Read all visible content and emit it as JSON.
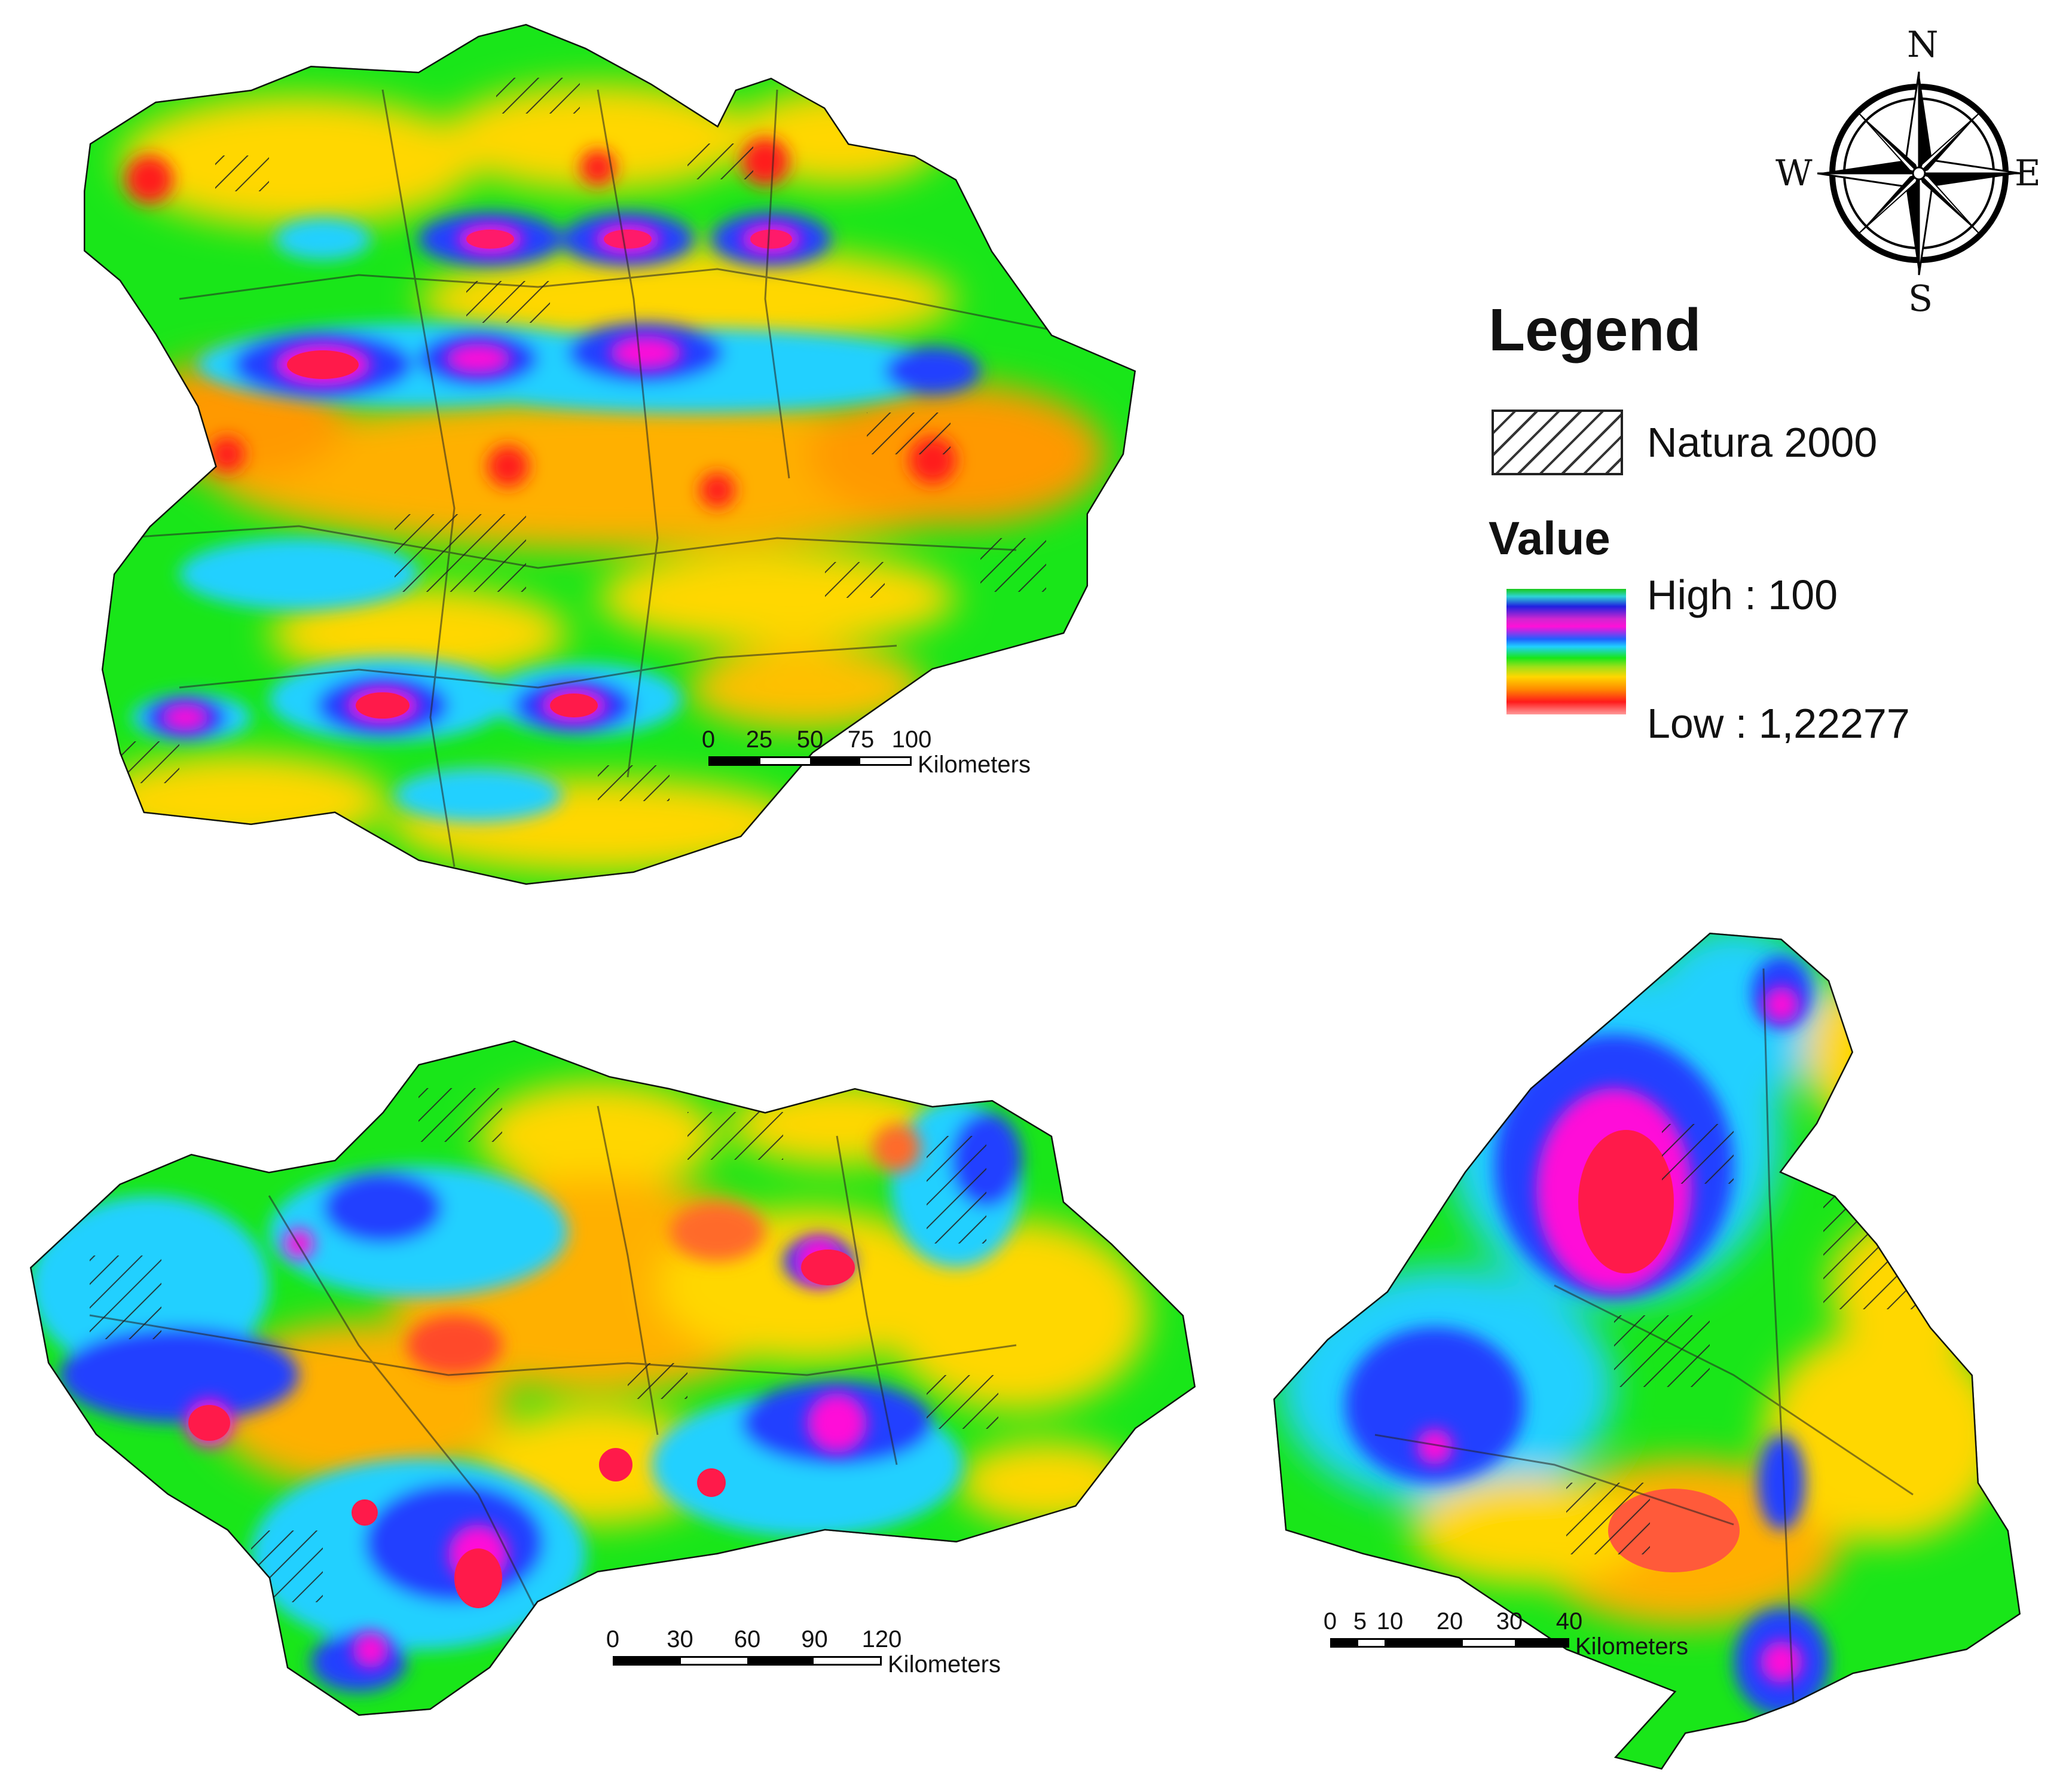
{
  "legend": {
    "title": "Legend",
    "natura_label": "Natura 2000",
    "value_title": "Value",
    "high_label": "High : 100",
    "low_label": "Low : 1,22277"
  },
  "compass": {
    "north": "N",
    "south": "S",
    "east": "E",
    "west": "W"
  },
  "scale_bars": {
    "castilla_leon": {
      "ticks": [
        "0",
        "25",
        "50",
        "75",
        "100"
      ],
      "units": "Kilometers"
    },
    "andalucia": {
      "ticks": [
        "0",
        "30",
        "60",
        "90",
        "120"
      ],
      "units": "Kilometers"
    },
    "madrid": {
      "ticks": [
        "0",
        "5",
        "10",
        "20",
        "30",
        "40"
      ],
      "units": "Kilometers"
    }
  },
  "colors": {
    "high": "#ff10d8",
    "blue": "#2040ff",
    "cyan": "#20d0ff",
    "green": "#19e619",
    "yellow": "#ffd700",
    "orange": "#ff8a00",
    "low": "#ff1a1a",
    "hatch": "#333333"
  }
}
